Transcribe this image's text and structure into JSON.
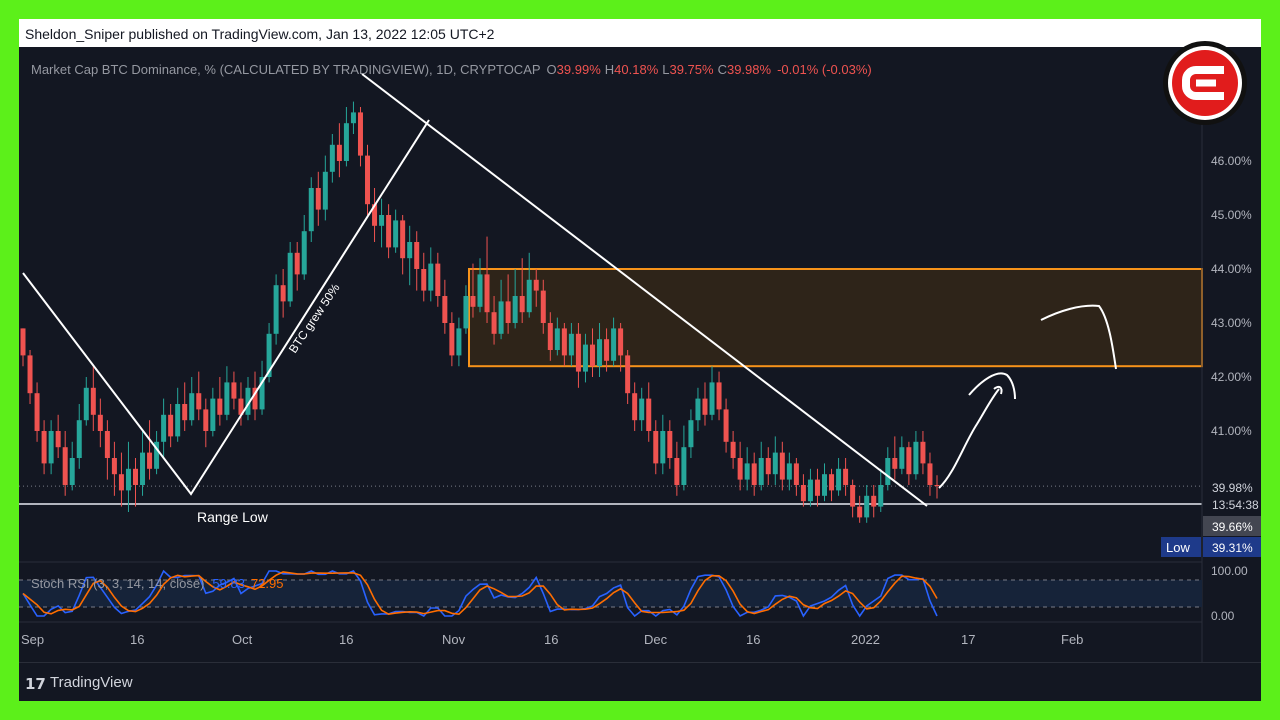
{
  "header": {
    "published_line": "Sheldon_Sniper published on TradingView.com, Jan 13, 2022 12:05 UTC+2"
  },
  "footer": {
    "logo_glyph": "17",
    "brand": "TradingView"
  },
  "legend": {
    "symbol": "Market Cap BTC Dominance, % (CALCULATED BY TRADINGVIEW), 1D, CRYPTOCAP",
    "o_label": "O",
    "o_value": "39.99%",
    "h_label": "H",
    "h_value": "40.18%",
    "l_label": "L",
    "l_value": "39.75%",
    "c_label": "C",
    "c_value": "39.98%",
    "change": "-0.01% (-0.03%)"
  },
  "annotations": {
    "btc_grew": "BTC grew 50%",
    "range_low": "Range Low"
  },
  "price_axis": {
    "ticks": [
      "46.00%",
      "45.00%",
      "44.00%",
      "43.00%",
      "42.00%",
      "41.00%"
    ],
    "last_price": "39.98%",
    "countdown": "13:54:38",
    "mark_price": "39.66%",
    "low_label": "Low",
    "low_value": "39.31%"
  },
  "stoch": {
    "title": "Stoch RSI (3, 3, 14, 14, close)",
    "k_value": "59.83",
    "d_value": "72.95",
    "ticks": [
      "100.00",
      "0.00"
    ]
  },
  "time_axis": [
    "Sep",
    "16",
    "Oct",
    "16",
    "Nov",
    "16",
    "Dec",
    "16",
    "2022",
    "17",
    "Feb"
  ],
  "colors": {
    "background": "#131722",
    "up": "#26a69a",
    "down": "#ef5350",
    "zone_border": "#f7931a",
    "zone_fill": "#2e2419",
    "k_line": "#2962ff",
    "d_line": "#ff6d00",
    "frame_border": "#5cf01a"
  },
  "chart_data": {
    "type": "candlestick",
    "ylim": [
      39.0,
      47.0
    ],
    "resistance_zone": [
      42.2,
      44.0
    ],
    "range_low": 39.8,
    "last_close": 39.98,
    "candles": [
      [
        42.9,
        42.4,
        42.9,
        42.2
      ],
      [
        42.4,
        41.7,
        42.5,
        41.5
      ],
      [
        41.7,
        41.0,
        41.9,
        40.8
      ],
      [
        41.0,
        40.4,
        41.2,
        40.2
      ],
      [
        40.4,
        41.0,
        41.2,
        40.2
      ],
      [
        41.0,
        40.7,
        41.3,
        40.5
      ],
      [
        40.7,
        40.0,
        41.0,
        39.8
      ],
      [
        40.0,
        40.5,
        40.8,
        39.9
      ],
      [
        40.5,
        41.2,
        41.5,
        40.3
      ],
      [
        41.2,
        41.8,
        42.0,
        41.1
      ],
      [
        41.8,
        41.3,
        42.2,
        41.0
      ],
      [
        41.3,
        41.0,
        41.6,
        40.7
      ],
      [
        41.0,
        40.5,
        41.2,
        40.1
      ],
      [
        40.5,
        40.2,
        40.8,
        39.8
      ],
      [
        40.2,
        39.9,
        40.6,
        39.6
      ],
      [
        39.9,
        40.3,
        40.8,
        39.5
      ],
      [
        40.3,
        40.0,
        40.5,
        39.6
      ],
      [
        40.0,
        40.6,
        41.0,
        39.8
      ],
      [
        40.6,
        40.3,
        41.2,
        40.1
      ],
      [
        40.3,
        40.8,
        41.0,
        40.2
      ],
      [
        40.8,
        41.3,
        41.6,
        40.5
      ],
      [
        41.3,
        40.9,
        41.5,
        40.7
      ],
      [
        40.9,
        41.5,
        41.8,
        40.8
      ],
      [
        41.5,
        41.2,
        41.9,
        41.0
      ],
      [
        41.2,
        41.7,
        42.0,
        41.1
      ],
      [
        41.7,
        41.4,
        42.1,
        41.2
      ],
      [
        41.4,
        41.0,
        41.6,
        40.7
      ],
      [
        41.0,
        41.6,
        41.8,
        40.9
      ],
      [
        41.6,
        41.3,
        42.0,
        41.1
      ],
      [
        41.3,
        41.9,
        42.2,
        41.2
      ],
      [
        41.9,
        41.6,
        42.1,
        41.4
      ],
      [
        41.6,
        41.3,
        41.9,
        41.1
      ],
      [
        41.3,
        41.8,
        42.0,
        41.2
      ],
      [
        41.8,
        41.4,
        42.1,
        41.2
      ],
      [
        41.4,
        42.0,
        42.3,
        41.3
      ],
      [
        42.0,
        42.8,
        43.0,
        41.9
      ],
      [
        42.8,
        43.7,
        43.9,
        42.6
      ],
      [
        43.7,
        43.4,
        44.0,
        43.1
      ],
      [
        43.4,
        44.3,
        44.5,
        43.3
      ],
      [
        44.3,
        43.9,
        44.5,
        43.6
      ],
      [
        43.9,
        44.7,
        45.0,
        43.8
      ],
      [
        44.7,
        45.5,
        45.7,
        44.5
      ],
      [
        45.5,
        45.1,
        45.8,
        44.8
      ],
      [
        45.1,
        45.8,
        46.1,
        44.9
      ],
      [
        45.8,
        46.3,
        46.5,
        45.6
      ],
      [
        46.3,
        46.0,
        46.7,
        45.7
      ],
      [
        46.0,
        46.7,
        47.0,
        45.9
      ],
      [
        46.7,
        46.9,
        47.1,
        46.5
      ],
      [
        46.9,
        46.1,
        47.0,
        45.9
      ],
      [
        46.1,
        45.2,
        46.3,
        45.0
      ],
      [
        45.2,
        44.8,
        45.5,
        44.5
      ],
      [
        44.8,
        45.0,
        45.3,
        44.4
      ],
      [
        45.0,
        44.4,
        45.2,
        44.2
      ],
      [
        44.4,
        44.9,
        45.1,
        44.3
      ],
      [
        44.9,
        44.2,
        45.0,
        43.9
      ],
      [
        44.2,
        44.5,
        44.8,
        43.7
      ],
      [
        44.5,
        44.0,
        44.7,
        43.6
      ],
      [
        44.0,
        43.6,
        44.3,
        43.4
      ],
      [
        43.6,
        44.1,
        44.4,
        43.4
      ],
      [
        44.1,
        43.5,
        44.3,
        43.3
      ],
      [
        43.5,
        43.0,
        43.8,
        42.8
      ],
      [
        43.0,
        42.4,
        43.2,
        42.2
      ],
      [
        42.4,
        42.9,
        43.1,
        42.2
      ],
      [
        42.9,
        43.5,
        43.7,
        42.8
      ],
      [
        43.5,
        43.3,
        44.1,
        43.1
      ],
      [
        43.3,
        43.9,
        44.2,
        43.2
      ],
      [
        43.9,
        43.2,
        44.6,
        43.0
      ],
      [
        43.2,
        42.8,
        43.5,
        42.6
      ],
      [
        42.8,
        43.4,
        43.8,
        42.7
      ],
      [
        43.4,
        43.0,
        43.9,
        42.8
      ],
      [
        43.0,
        43.5,
        44.0,
        42.9
      ],
      [
        43.5,
        43.2,
        44.2,
        43.0
      ],
      [
        43.2,
        43.8,
        44.3,
        43.1
      ],
      [
        43.8,
        43.6,
        44.0,
        43.3
      ],
      [
        43.6,
        43.0,
        43.8,
        42.8
      ],
      [
        43.0,
        42.5,
        43.2,
        42.3
      ],
      [
        42.5,
        42.9,
        43.1,
        42.4
      ],
      [
        42.9,
        42.4,
        43.0,
        42.2
      ],
      [
        42.4,
        42.8,
        43.0,
        42.2
      ],
      [
        42.8,
        42.1,
        43.0,
        41.8
      ],
      [
        42.1,
        42.6,
        42.8,
        41.9
      ],
      [
        42.6,
        42.2,
        42.9,
        42.0
      ],
      [
        42.2,
        42.7,
        43.0,
        42.0
      ],
      [
        42.7,
        42.3,
        42.9,
        42.1
      ],
      [
        42.3,
        42.9,
        43.1,
        42.2
      ],
      [
        42.9,
        42.4,
        43.0,
        42.1
      ],
      [
        42.4,
        41.7,
        42.5,
        41.5
      ],
      [
        41.7,
        41.2,
        41.9,
        41.0
      ],
      [
        41.2,
        41.6,
        41.8,
        41.0
      ],
      [
        41.6,
        41.0,
        41.9,
        40.8
      ],
      [
        41.0,
        40.4,
        41.2,
        40.2
      ],
      [
        40.4,
        41.0,
        41.3,
        40.2
      ],
      [
        41.0,
        40.5,
        41.2,
        40.3
      ],
      [
        40.5,
        40.0,
        40.8,
        39.8
      ],
      [
        40.0,
        40.7,
        41.1,
        39.9
      ],
      [
        40.7,
        41.2,
        41.4,
        40.5
      ],
      [
        41.2,
        41.6,
        41.8,
        41.0
      ],
      [
        41.6,
        41.3,
        41.9,
        41.1
      ],
      [
        41.3,
        41.9,
        42.2,
        41.2
      ],
      [
        41.9,
        41.4,
        42.1,
        41.2
      ],
      [
        41.4,
        40.8,
        41.6,
        40.6
      ],
      [
        40.8,
        40.5,
        41.0,
        40.3
      ],
      [
        40.5,
        40.1,
        40.8,
        39.9
      ],
      [
        40.1,
        40.4,
        40.7,
        39.9
      ],
      [
        40.4,
        40.0,
        40.6,
        39.8
      ],
      [
        40.0,
        40.5,
        40.8,
        39.9
      ],
      [
        40.5,
        40.2,
        40.7,
        40.0
      ],
      [
        40.2,
        40.6,
        40.9,
        40.0
      ],
      [
        40.6,
        40.1,
        40.8,
        39.9
      ],
      [
        40.1,
        40.4,
        40.6,
        39.9
      ],
      [
        40.4,
        40.0,
        40.5,
        39.8
      ],
      [
        40.0,
        39.7,
        40.2,
        39.6
      ],
      [
        39.7,
        40.1,
        40.3,
        39.6
      ],
      [
        40.1,
        39.8,
        40.3,
        39.6
      ],
      [
        39.8,
        40.2,
        40.4,
        39.7
      ],
      [
        40.2,
        39.9,
        40.3,
        39.7
      ],
      [
        39.9,
        40.3,
        40.5,
        39.8
      ],
      [
        40.3,
        40.0,
        40.5,
        39.8
      ],
      [
        40.0,
        39.6,
        40.1,
        39.4
      ],
      [
        39.6,
        39.4,
        39.8,
        39.3
      ],
      [
        39.4,
        39.8,
        40.0,
        39.3
      ],
      [
        39.8,
        39.6,
        40.0,
        39.4
      ],
      [
        39.6,
        40.0,
        40.3,
        39.5
      ],
      [
        40.0,
        40.5,
        40.7,
        39.9
      ],
      [
        40.5,
        40.3,
        40.9,
        40.1
      ],
      [
        40.3,
        40.7,
        40.9,
        40.2
      ],
      [
        40.7,
        40.2,
        40.8,
        40.0
      ],
      [
        40.2,
        40.8,
        41.0,
        40.1
      ],
      [
        40.8,
        40.4,
        41.0,
        40.2
      ],
      [
        40.4,
        40.0,
        40.6,
        39.8
      ],
      [
        40.0,
        39.98,
        40.18,
        39.75
      ]
    ]
  }
}
